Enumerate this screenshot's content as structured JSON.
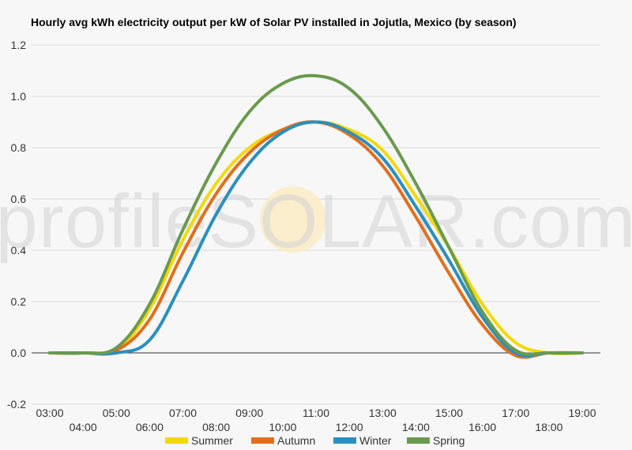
{
  "chart_data": {
    "type": "line",
    "title": "Hourly avg kWh electricity output per kW of Solar PV installed in Jojutla, Mexico (by season)",
    "xlabel": "",
    "ylabel": "",
    "ylim": [
      -0.2,
      1.2
    ],
    "yticks": [
      "-0.2",
      "0.0",
      "0.2",
      "0.4",
      "0.6",
      "0.8",
      "1.0",
      "1.2"
    ],
    "grid": true,
    "legend_position": "bottom",
    "categories": [
      "03:00",
      "04:00",
      "05:00",
      "06:00",
      "07:00",
      "08:00",
      "09:00",
      "10:00",
      "11:00",
      "12:00",
      "13:00",
      "14:00",
      "15:00",
      "16:00",
      "17:00",
      "18:00",
      "19:00"
    ],
    "series": [
      {
        "name": "Summer",
        "color": "#f4d80a",
        "values": [
          0,
          0,
          0.01,
          0.17,
          0.44,
          0.66,
          0.8,
          0.87,
          0.9,
          0.87,
          0.79,
          0.61,
          0.41,
          0.19,
          0.04,
          0.0,
          0
        ]
      },
      {
        "name": "Autumn",
        "color": "#e06f1f",
        "values": [
          0,
          0,
          0.01,
          0.13,
          0.39,
          0.62,
          0.78,
          0.87,
          0.9,
          0.85,
          0.73,
          0.53,
          0.31,
          0.11,
          -0.01,
          0,
          0
        ]
      },
      {
        "name": "Winter",
        "color": "#2b8fbd",
        "values": [
          0,
          0,
          0,
          0.05,
          0.28,
          0.54,
          0.74,
          0.86,
          0.9,
          0.86,
          0.76,
          0.57,
          0.36,
          0.14,
          0.0,
          0,
          0
        ]
      },
      {
        "name": "Spring",
        "color": "#6a9a4e",
        "values": [
          0,
          0,
          0.02,
          0.19,
          0.48,
          0.74,
          0.94,
          1.05,
          1.08,
          1.03,
          0.88,
          0.66,
          0.41,
          0.16,
          0.01,
          0,
          0
        ]
      }
    ]
  },
  "watermark": {
    "text": "profileSOLAR.com"
  }
}
